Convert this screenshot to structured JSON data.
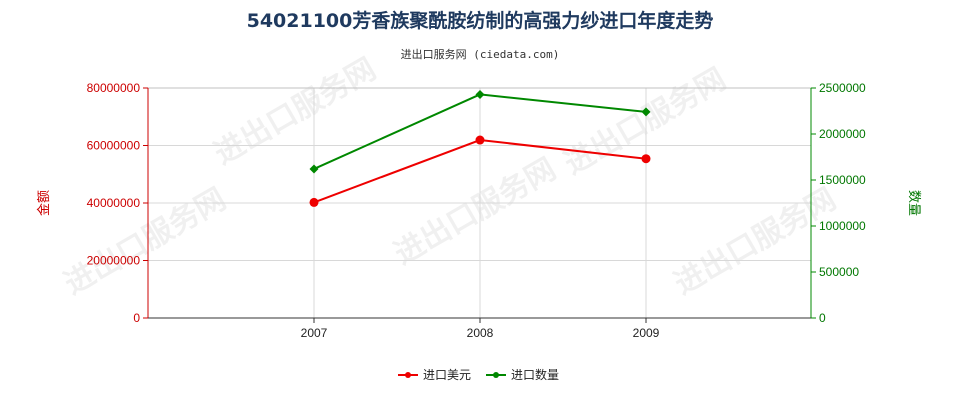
{
  "chart_data": {
    "type": "line",
    "title": "54021100芳香族聚酰胺纺制的高强力纱进口年度走势",
    "subtitle": "进出口服务网 (ciedata.com)",
    "x": [
      "2007",
      "2008",
      "2009"
    ],
    "left_axis": {
      "label": "金额",
      "ylim": [
        0,
        80000000
      ],
      "ticks": [
        "0",
        "20000000",
        "40000000",
        "60000000",
        "80000000"
      ]
    },
    "right_axis": {
      "label": "数量",
      "ylim": [
        0,
        2500000
      ],
      "ticks": [
        "0",
        "500000",
        "1000000",
        "1500000",
        "2000000",
        "2500000"
      ]
    },
    "series": [
      {
        "name": "进口美元",
        "axis": "left",
        "color": "#ee0000",
        "values": [
          40200000,
          61900000,
          55400000
        ]
      },
      {
        "name": "进口数量",
        "axis": "right",
        "color": "#008800",
        "values": [
          1620000,
          2430000,
          2240000
        ]
      }
    ],
    "grid": true,
    "legend_position": "bottom-center",
    "watermark": "进出口服务网"
  }
}
